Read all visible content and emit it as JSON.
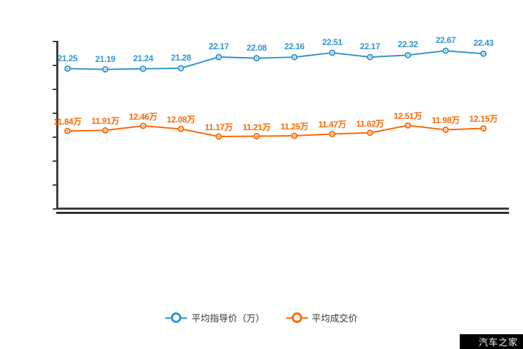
{
  "chart_data": {
    "type": "line",
    "title": "",
    "x": [
      1,
      2,
      3,
      4,
      5,
      6,
      7,
      8,
      9,
      10,
      11,
      12
    ],
    "x_tick_labels_visible": false,
    "y_tick_labels_visible": false,
    "grid": false,
    "legend_position": "bottom-center",
    "series": [
      {
        "name": "平均指导价（万）",
        "color": "#2e96d0",
        "values": [
          21.25,
          21.19,
          21.24,
          21.28,
          22.17,
          22.08,
          22.16,
          22.51,
          22.17,
          22.32,
          22.67,
          22.43
        ],
        "labels": [
          "21.25",
          "21.19",
          "21.24",
          "21.28",
          "22.17",
          "22.08",
          "22.16",
          "22.51",
          "22.17",
          "22.32",
          "22.67",
          "22.43"
        ],
        "ylim": [
          21.0,
          22.9
        ]
      },
      {
        "name": "平均成交价",
        "color": "#ff6600",
        "values": [
          11.84,
          11.91,
          12.46,
          12.08,
          11.17,
          11.21,
          11.25,
          11.47,
          11.62,
          12.51,
          11.98,
          12.15
        ],
        "labels": [
          "11.84万",
          "11.91万",
          "12.46万",
          "12.08万",
          "11.17万",
          "11.21万",
          "11.25万",
          "11.47万",
          "11.62万",
          "12.51万",
          "11.98万",
          "12.15万"
        ],
        "ylim": [
          11.0,
          12.7
        ]
      }
    ]
  },
  "legend": {
    "items": [
      {
        "label": "平均指导价（万）",
        "color": "#2e96d0"
      },
      {
        "label": "平均成交价",
        "color": "#ff6600"
      }
    ]
  },
  "watermark": {
    "text": "汽车之家",
    "background": "#000000",
    "foreground": "#ffffff"
  },
  "colors": {
    "axis": "#3c3c3c",
    "blue": "#2e96d0",
    "orange": "#ff6600"
  }
}
